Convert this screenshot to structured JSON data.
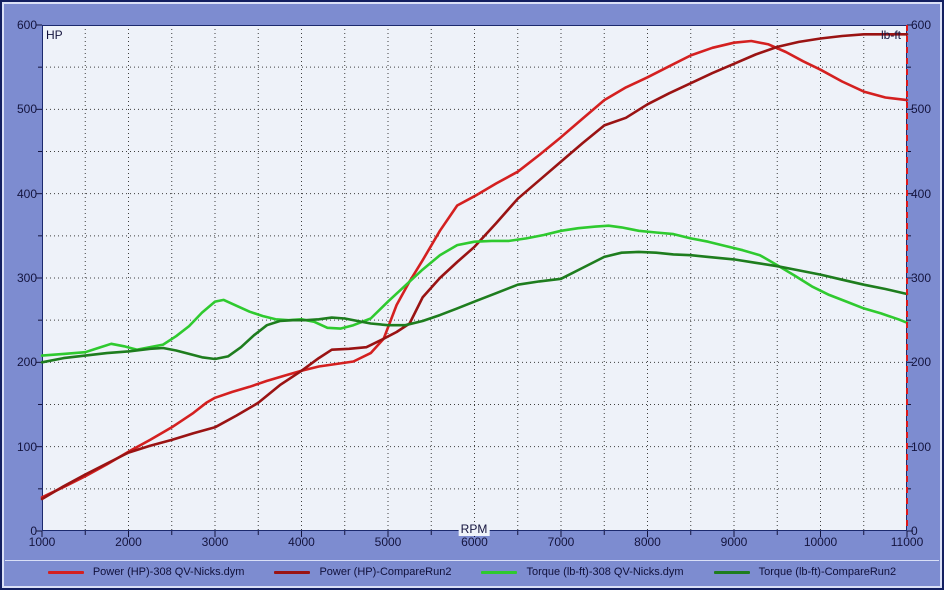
{
  "window": {
    "background_color": "#7d8cd0",
    "plot_background_color": "#eef2f9",
    "plot_border_color": "#1c2a6e",
    "grid_dot_color": "#3f3f3f",
    "tick_text_color": "#14143e"
  },
  "chart_data": {
    "type": "line",
    "title": "",
    "xlabel": "RPM",
    "ylabel_left": "HP",
    "ylabel_right": "lb-ft",
    "xlim": [
      1000,
      11000
    ],
    "ylim": [
      0,
      600
    ],
    "x_major_tick_step": 1000,
    "x_minor_tick_step": 500,
    "y_major_tick_step": 100,
    "y_minor_tick_step": 50,
    "grid": "dotted minor grid every 500 RPM and every 50 units",
    "legend_position": "bottom",
    "cursor": {
      "x": 11000,
      "color": "#e01818",
      "style": "dashed-vertical"
    },
    "series": [
      {
        "name": "Power (HP)-308 QV-Nicks.dym",
        "color": "#d42020",
        "points": [
          [
            1000,
            40
          ],
          [
            1250,
            52
          ],
          [
            1500,
            65
          ],
          [
            1750,
            79
          ],
          [
            2000,
            94
          ],
          [
            2250,
            108
          ],
          [
            2500,
            123
          ],
          [
            2750,
            140
          ],
          [
            2900,
            152
          ],
          [
            3000,
            158
          ],
          [
            3200,
            165
          ],
          [
            3400,
            171
          ],
          [
            3600,
            178
          ],
          [
            3800,
            184
          ],
          [
            4000,
            190
          ],
          [
            4200,
            195
          ],
          [
            4400,
            198
          ],
          [
            4600,
            201
          ],
          [
            4800,
            211
          ],
          [
            4950,
            228
          ],
          [
            5100,
            268
          ],
          [
            5250,
            296
          ],
          [
            5400,
            321
          ],
          [
            5600,
            356
          ],
          [
            5800,
            386
          ],
          [
            6000,
            397
          ],
          [
            6250,
            412
          ],
          [
            6500,
            426
          ],
          [
            6750,
            446
          ],
          [
            7000,
            467
          ],
          [
            7250,
            489
          ],
          [
            7500,
            511
          ],
          [
            7750,
            526
          ],
          [
            8000,
            538
          ],
          [
            8250,
            551
          ],
          [
            8500,
            564
          ],
          [
            8750,
            573
          ],
          [
            9000,
            579
          ],
          [
            9200,
            581
          ],
          [
            9400,
            577
          ],
          [
            9600,
            568
          ],
          [
            9800,
            557
          ],
          [
            10000,
            547
          ],
          [
            10250,
            533
          ],
          [
            10500,
            521
          ],
          [
            10750,
            514
          ],
          [
            11000,
            511
          ]
        ]
      },
      {
        "name": "Power (HP)-CompareRun2",
        "color": "#9a1313",
        "points": [
          [
            1000,
            38
          ],
          [
            1250,
            53
          ],
          [
            1500,
            67
          ],
          [
            1750,
            80
          ],
          [
            2000,
            93
          ],
          [
            2250,
            101
          ],
          [
            2500,
            108
          ],
          [
            2750,
            116
          ],
          [
            3000,
            123
          ],
          [
            3250,
            137
          ],
          [
            3500,
            152
          ],
          [
            3750,
            173
          ],
          [
            4000,
            190
          ],
          [
            4200,
            205
          ],
          [
            4350,
            215
          ],
          [
            4550,
            216
          ],
          [
            4750,
            218
          ],
          [
            4950,
            228
          ],
          [
            5100,
            236
          ],
          [
            5250,
            246
          ],
          [
            5400,
            277
          ],
          [
            5600,
            300
          ],
          [
            5800,
            319
          ],
          [
            6000,
            337
          ],
          [
            6250,
            365
          ],
          [
            6500,
            394
          ],
          [
            6750,
            416
          ],
          [
            7000,
            438
          ],
          [
            7250,
            460
          ],
          [
            7500,
            481
          ],
          [
            7750,
            490
          ],
          [
            8000,
            506
          ],
          [
            8250,
            519
          ],
          [
            8500,
            531
          ],
          [
            8750,
            543
          ],
          [
            9000,
            554
          ],
          [
            9250,
            565
          ],
          [
            9500,
            574
          ],
          [
            9750,
            580
          ],
          [
            10000,
            584
          ],
          [
            10250,
            587
          ],
          [
            10500,
            589
          ],
          [
            10750,
            589
          ],
          [
            11000,
            589
          ]
        ]
      },
      {
        "name": "Torque (lb-ft)-308 QV-Nicks.dym",
        "color": "#2fca2f",
        "points": [
          [
            1000,
            208
          ],
          [
            1250,
            210
          ],
          [
            1500,
            212
          ],
          [
            1650,
            217
          ],
          [
            1800,
            222
          ],
          [
            1950,
            219
          ],
          [
            2100,
            215
          ],
          [
            2250,
            218
          ],
          [
            2400,
            221
          ],
          [
            2550,
            231
          ],
          [
            2700,
            243
          ],
          [
            2850,
            259
          ],
          [
            3000,
            272
          ],
          [
            3100,
            274
          ],
          [
            3250,
            267
          ],
          [
            3400,
            260
          ],
          [
            3550,
            255
          ],
          [
            3700,
            251
          ],
          [
            3850,
            250
          ],
          [
            4000,
            251
          ],
          [
            4150,
            248
          ],
          [
            4300,
            241
          ],
          [
            4450,
            240
          ],
          [
            4600,
            244
          ],
          [
            4800,
            252
          ],
          [
            5000,
            272
          ],
          [
            5200,
            291
          ],
          [
            5400,
            310
          ],
          [
            5600,
            327
          ],
          [
            5800,
            339
          ],
          [
            6000,
            343
          ],
          [
            6200,
            344
          ],
          [
            6400,
            344
          ],
          [
            6600,
            347
          ],
          [
            6800,
            351
          ],
          [
            7000,
            356
          ],
          [
            7200,
            359
          ],
          [
            7400,
            361
          ],
          [
            7550,
            362
          ],
          [
            7700,
            360
          ],
          [
            7900,
            356
          ],
          [
            8100,
            354
          ],
          [
            8300,
            352
          ],
          [
            8500,
            347
          ],
          [
            8700,
            343
          ],
          [
            8900,
            338
          ],
          [
            9100,
            333
          ],
          [
            9300,
            327
          ],
          [
            9500,
            315
          ],
          [
            9700,
            303
          ],
          [
            9900,
            290
          ],
          [
            10100,
            280
          ],
          [
            10300,
            272
          ],
          [
            10500,
            264
          ],
          [
            10700,
            258
          ],
          [
            10900,
            251
          ],
          [
            11000,
            247
          ]
        ]
      },
      {
        "name": "Torque (lb-ft)-CompareRun2",
        "color": "#1e7d1e",
        "points": [
          [
            1000,
            200
          ],
          [
            1250,
            205
          ],
          [
            1500,
            208
          ],
          [
            1750,
            211
          ],
          [
            2000,
            213
          ],
          [
            2250,
            216
          ],
          [
            2400,
            217
          ],
          [
            2550,
            214
          ],
          [
            2700,
            210
          ],
          [
            2850,
            206
          ],
          [
            3000,
            204
          ],
          [
            3150,
            207
          ],
          [
            3300,
            218
          ],
          [
            3450,
            232
          ],
          [
            3600,
            244
          ],
          [
            3750,
            249
          ],
          [
            3900,
            250
          ],
          [
            4050,
            250
          ],
          [
            4200,
            251
          ],
          [
            4350,
            253
          ],
          [
            4500,
            252
          ],
          [
            4650,
            249
          ],
          [
            4800,
            246
          ],
          [
            5000,
            244
          ],
          [
            5200,
            244
          ],
          [
            5400,
            249
          ],
          [
            5600,
            256
          ],
          [
            5800,
            264
          ],
          [
            6000,
            272
          ],
          [
            6250,
            282
          ],
          [
            6500,
            292
          ],
          [
            6750,
            296
          ],
          [
            7000,
            299
          ],
          [
            7250,
            312
          ],
          [
            7500,
            325
          ],
          [
            7700,
            330
          ],
          [
            7900,
            331
          ],
          [
            8100,
            330
          ],
          [
            8300,
            328
          ],
          [
            8500,
            327
          ],
          [
            8700,
            325
          ],
          [
            9000,
            322
          ],
          [
            9250,
            318
          ],
          [
            9500,
            314
          ],
          [
            9750,
            309
          ],
          [
            10000,
            304
          ],
          [
            10250,
            298
          ],
          [
            10500,
            292
          ],
          [
            10750,
            287
          ],
          [
            11000,
            281
          ]
        ]
      }
    ]
  }
}
